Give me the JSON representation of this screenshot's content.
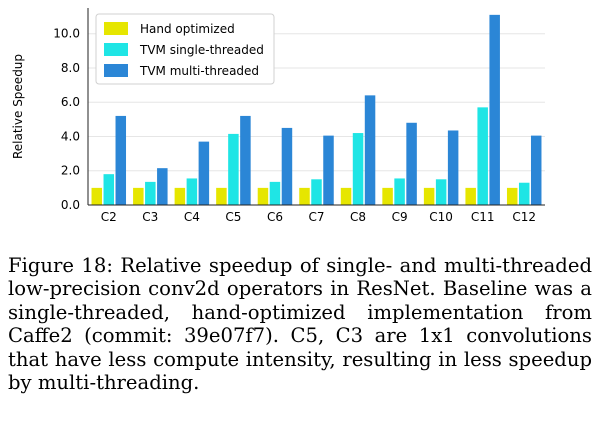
{
  "chart_data": {
    "type": "bar",
    "categories": [
      "C2",
      "C3",
      "C4",
      "C5",
      "C6",
      "C7",
      "C8",
      "C9",
      "C10",
      "C11",
      "C12"
    ],
    "series": [
      {
        "name": "Hand optimized",
        "color": "#e6e600",
        "values": [
          1.0,
          1.0,
          1.0,
          1.0,
          1.0,
          1.0,
          1.0,
          1.0,
          1.0,
          1.0,
          1.0
        ]
      },
      {
        "name": "TVM single-threaded",
        "color": "#1fe5e5",
        "values": [
          1.8,
          1.35,
          1.55,
          4.15,
          1.35,
          1.5,
          4.2,
          1.55,
          1.5,
          5.7,
          1.3
        ]
      },
      {
        "name": "TVM multi-threaded",
        "color": "#2b86d6",
        "values": [
          5.2,
          2.15,
          3.7,
          5.2,
          4.5,
          4.05,
          6.4,
          4.8,
          4.35,
          11.1,
          4.05
        ]
      }
    ],
    "ylabel": "Relative Speedup",
    "yticks": [
      "0.0",
      "2.0",
      "4.0",
      "6.0",
      "8.0",
      "10.0"
    ],
    "ylim": [
      0,
      11.5
    ],
    "grid": true,
    "legend": "top-left"
  },
  "caption": "Figure 18: Relative speedup of single- and multi-threaded low-precision conv2d operators in ResNet. Baseline was a single-threaded, hand-optimized implementation from Caffe2 (commit: 39e07f7). C5, C3 are 1x1 convolutions that have less compute intensity, resulting in less speedup by multi-threading."
}
